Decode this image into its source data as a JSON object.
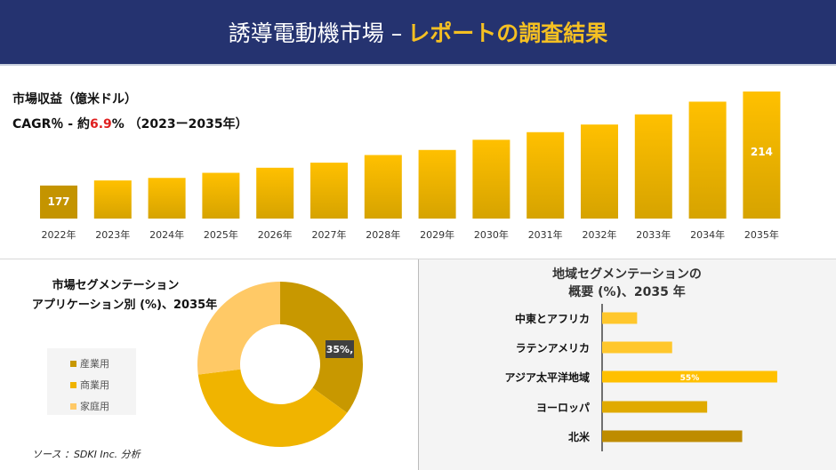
{
  "header": {
    "title_main": "誘導電動機市場 –",
    "title_accent": "レポートの調査結果"
  },
  "colors": {
    "header_bg": "#253370",
    "accent": "#f5c022",
    "cagr_highlight": "#e02020"
  },
  "revenue": {
    "title": "市場収益（億米ドル）",
    "cagr_prefix": "CAGR％ - 約",
    "cagr_value": "6.9",
    "cagr_suffix": "% （2023ー2035年）"
  },
  "chart_data": [
    {
      "type": "bar",
      "title": "市場収益（億米ドル）",
      "categories": [
        "2022年",
        "2023年",
        "2024年",
        "2025年",
        "2026年",
        "2027年",
        "2028年",
        "2029年",
        "2030年",
        "2031年",
        "2032年",
        "2033年",
        "2034年",
        "2035年"
      ],
      "values": [
        177,
        179,
        180,
        182,
        184,
        186,
        189,
        191,
        195,
        198,
        201,
        205,
        210,
        214
      ],
      "data_labels": {
        "2022年": "177",
        "2035年": "214"
      },
      "grid": false
    },
    {
      "type": "pie",
      "variant": "donut",
      "title": "市場セグメンテーション アプリケーション別 (%)、2035年",
      "labels": [
        "産業用",
        "商業用",
        "家庭用"
      ],
      "values": [
        35,
        38,
        27
      ],
      "colors": [
        "#c89800",
        "#f0b400",
        "#ffc966"
      ],
      "data_labels": {
        "産業用": "35%,"
      },
      "legend": "left"
    },
    {
      "type": "bar",
      "orientation": "horizontal",
      "title": "地域セグメンテーションの 概要 (%)、2035 年",
      "categories": [
        "中東とアフリカ",
        "ラテンアメリカ",
        "アジア太平洋地域",
        "ヨーロッパ",
        "北米"
      ],
      "values": [
        11,
        22,
        55,
        33,
        44
      ],
      "colors": [
        "#ffc72c",
        "#ffc72c",
        "#ffc000",
        "#e0aa00",
        "#be8c00"
      ],
      "data_labels": {
        "アジア太平洋地域": "55%"
      }
    }
  ],
  "pie": {
    "title1": "市場セグメンテーション",
    "title2": "アプリケーション別 (%)、2035年"
  },
  "region": {
    "title1": "地域セグメンテーションの",
    "title2": "概要 (%)、2035 年"
  },
  "source": "ソース ：SDKI Inc. 分析"
}
